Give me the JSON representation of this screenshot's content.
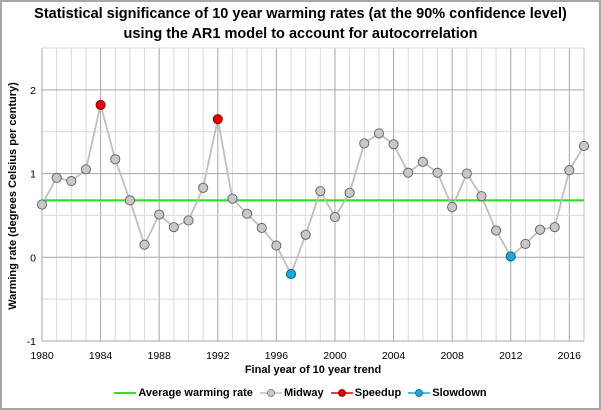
{
  "chart_data": {
    "type": "line",
    "title_line1": "Statistical significance of 10 year warming rates (at the 90% confidence level)",
    "title_line2": "using the AR1 model to account for autocorrelation",
    "xlabel": "Final year of 10 year trend",
    "ylabel": "Warming rate (degrees Celsius per century)",
    "xlim": [
      1980,
      2017
    ],
    "ylim": [
      -1,
      2.5
    ],
    "x_ticks": [
      1980,
      1984,
      1988,
      1992,
      1996,
      2000,
      2004,
      2008,
      2012,
      2016
    ],
    "x_tick_labels": [
      "1980",
      "1984",
      "1988",
      "1992",
      "1996",
      "2000",
      "2004",
      "2008",
      "2012",
      "2016"
    ],
    "y_ticks": [
      -1,
      0,
      1,
      2
    ],
    "y_tick_labels": [
      "-1",
      "0",
      "1",
      "2"
    ],
    "grid": true,
    "x": [
      1980,
      1981,
      1982,
      1983,
      1984,
      1985,
      1986,
      1987,
      1988,
      1989,
      1990,
      1991,
      1992,
      1993,
      1994,
      1995,
      1996,
      1997,
      1998,
      1999,
      2000,
      2001,
      2002,
      2003,
      2004,
      2005,
      2006,
      2007,
      2008,
      2009,
      2010,
      2011,
      2012,
      2013,
      2014,
      2015,
      2016,
      2017
    ],
    "values": [
      0.63,
      0.95,
      0.91,
      1.05,
      1.82,
      1.17,
      0.68,
      0.15,
      0.51,
      0.36,
      0.44,
      0.83,
      1.65,
      0.7,
      0.52,
      0.35,
      0.14,
      -0.2,
      0.27,
      0.79,
      0.48,
      0.77,
      1.36,
      1.48,
      1.35,
      1.01,
      1.14,
      1.01,
      0.6,
      1.0,
      0.73,
      0.32,
      0.01,
      0.16,
      0.33,
      0.36,
      1.04,
      1.33
    ],
    "classification": [
      "Midway",
      "Midway",
      "Midway",
      "Midway",
      "Speedup",
      "Midway",
      "Midway",
      "Midway",
      "Midway",
      "Midway",
      "Midway",
      "Midway",
      "Speedup",
      "Midway",
      "Midway",
      "Midway",
      "Midway",
      "Slowdown",
      "Midway",
      "Midway",
      "Midway",
      "Midway",
      "Midway",
      "Midway",
      "Midway",
      "Midway",
      "Midway",
      "Midway",
      "Midway",
      "Midway",
      "Midway",
      "Midway",
      "Slowdown",
      "Midway",
      "Midway",
      "Midway",
      "Midway",
      "Midway"
    ],
    "average_warming_rate": 0.68,
    "series": [
      {
        "name": "Average warming rate",
        "color": "#33dd33"
      },
      {
        "name": "Midway",
        "color": "#bfbfbf"
      },
      {
        "name": "Speedup",
        "color": "#e00000"
      },
      {
        "name": "Slowdown",
        "color": "#1ea7d6"
      }
    ],
    "legend_position": "bottom"
  }
}
